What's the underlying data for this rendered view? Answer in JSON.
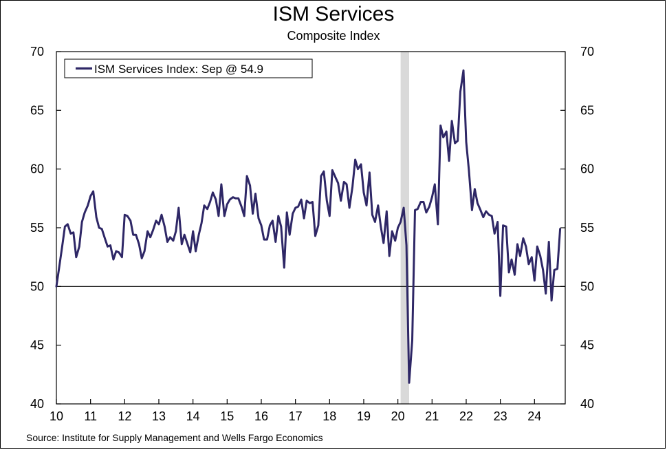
{
  "chart_data": {
    "type": "line",
    "title": "ISM Services",
    "subtitle": "Composite Index",
    "source": "Source: Institute for Supply Management and Wells Fargo Economics",
    "xlabel": "",
    "ylabel": "",
    "x_tick_labels": [
      "10",
      "11",
      "12",
      "13",
      "14",
      "15",
      "16",
      "17",
      "18",
      "19",
      "20",
      "21",
      "22",
      "23",
      "24"
    ],
    "y_tick_labels": [
      "40",
      "45",
      "50",
      "55",
      "60",
      "65",
      "70"
    ],
    "ylim": [
      40,
      70
    ],
    "xlim": [
      2010.0,
      2024.9
    ],
    "reference_line": 50,
    "grid": false,
    "legend_position": "top-left",
    "series_color": "#2e2766",
    "recession_color": "#d9d9d9",
    "recession": {
      "start": 2020.08,
      "end": 2020.33
    },
    "series": [
      {
        "name": "ISM Services Index: Sep @ 54.9",
        "points": [
          [
            2010.0,
            50.0
          ],
          [
            2010.08,
            51.6
          ],
          [
            2010.17,
            53.4
          ],
          [
            2010.25,
            55.1
          ],
          [
            2010.33,
            55.3
          ],
          [
            2010.42,
            54.5
          ],
          [
            2010.5,
            54.6
          ],
          [
            2010.58,
            52.5
          ],
          [
            2010.67,
            53.4
          ],
          [
            2010.75,
            55.5
          ],
          [
            2010.83,
            56.3
          ],
          [
            2010.92,
            56.9
          ],
          [
            2011.0,
            57.7
          ],
          [
            2011.08,
            58.1
          ],
          [
            2011.17,
            55.9
          ],
          [
            2011.25,
            55.0
          ],
          [
            2011.33,
            54.9
          ],
          [
            2011.42,
            54.1
          ],
          [
            2011.5,
            53.4
          ],
          [
            2011.58,
            53.5
          ],
          [
            2011.67,
            52.3
          ],
          [
            2011.75,
            53.0
          ],
          [
            2011.83,
            52.9
          ],
          [
            2011.92,
            52.5
          ],
          [
            2012.0,
            56.1
          ],
          [
            2012.08,
            56.0
          ],
          [
            2012.17,
            55.6
          ],
          [
            2012.25,
            54.4
          ],
          [
            2012.33,
            54.4
          ],
          [
            2012.42,
            53.6
          ],
          [
            2012.5,
            52.4
          ],
          [
            2012.58,
            53.0
          ],
          [
            2012.67,
            54.7
          ],
          [
            2012.75,
            54.2
          ],
          [
            2012.83,
            54.8
          ],
          [
            2012.92,
            55.6
          ],
          [
            2013.0,
            55.3
          ],
          [
            2013.08,
            56.1
          ],
          [
            2013.17,
            55.1
          ],
          [
            2013.25,
            53.8
          ],
          [
            2013.33,
            54.2
          ],
          [
            2013.42,
            53.9
          ],
          [
            2013.5,
            54.7
          ],
          [
            2013.58,
            56.7
          ],
          [
            2013.67,
            53.6
          ],
          [
            2013.75,
            54.4
          ],
          [
            2013.83,
            53.7
          ],
          [
            2013.92,
            52.9
          ],
          [
            2014.0,
            54.7
          ],
          [
            2014.08,
            53.0
          ],
          [
            2014.17,
            54.4
          ],
          [
            2014.25,
            55.4
          ],
          [
            2014.33,
            56.9
          ],
          [
            2014.42,
            56.6
          ],
          [
            2014.5,
            57.2
          ],
          [
            2014.58,
            58.0
          ],
          [
            2014.67,
            57.4
          ],
          [
            2014.75,
            56.0
          ],
          [
            2014.83,
            58.7
          ],
          [
            2014.92,
            56.0
          ],
          [
            2015.0,
            57.0
          ],
          [
            2015.08,
            57.4
          ],
          [
            2015.17,
            57.6
          ],
          [
            2015.25,
            57.5
          ],
          [
            2015.33,
            57.5
          ],
          [
            2015.42,
            56.8
          ],
          [
            2015.5,
            56.0
          ],
          [
            2015.58,
            59.4
          ],
          [
            2015.67,
            58.6
          ],
          [
            2015.75,
            56.2
          ],
          [
            2015.83,
            57.9
          ],
          [
            2015.92,
            55.8
          ],
          [
            2016.0,
            55.2
          ],
          [
            2016.08,
            54.0
          ],
          [
            2016.17,
            54.0
          ],
          [
            2016.25,
            55.2
          ],
          [
            2016.33,
            55.6
          ],
          [
            2016.42,
            53.8
          ],
          [
            2016.5,
            56.0
          ],
          [
            2016.58,
            55.1
          ],
          [
            2016.67,
            51.6
          ],
          [
            2016.75,
            56.3
          ],
          [
            2016.83,
            54.4
          ],
          [
            2016.92,
            56.2
          ],
          [
            2017.0,
            56.7
          ],
          [
            2017.08,
            56.8
          ],
          [
            2017.17,
            57.4
          ],
          [
            2017.25,
            55.8
          ],
          [
            2017.33,
            57.3
          ],
          [
            2017.42,
            57.1
          ],
          [
            2017.5,
            57.2
          ],
          [
            2017.58,
            54.3
          ],
          [
            2017.67,
            55.2
          ],
          [
            2017.75,
            59.4
          ],
          [
            2017.83,
            59.8
          ],
          [
            2017.92,
            57.3
          ],
          [
            2018.0,
            56.0
          ],
          [
            2018.08,
            59.9
          ],
          [
            2018.17,
            59.3
          ],
          [
            2018.25,
            58.8
          ],
          [
            2018.33,
            57.3
          ],
          [
            2018.42,
            58.9
          ],
          [
            2018.5,
            58.7
          ],
          [
            2018.58,
            56.7
          ],
          [
            2018.67,
            58.5
          ],
          [
            2018.75,
            60.8
          ],
          [
            2018.83,
            60.0
          ],
          [
            2018.92,
            60.4
          ],
          [
            2019.0,
            58.0
          ],
          [
            2019.08,
            56.9
          ],
          [
            2019.17,
            59.7
          ],
          [
            2019.25,
            56.1
          ],
          [
            2019.33,
            55.5
          ],
          [
            2019.42,
            56.9
          ],
          [
            2019.5,
            55.1
          ],
          [
            2019.58,
            53.7
          ],
          [
            2019.67,
            56.4
          ],
          [
            2019.75,
            52.6
          ],
          [
            2019.83,
            54.7
          ],
          [
            2019.92,
            53.9
          ],
          [
            2020.0,
            55.0
          ],
          [
            2020.08,
            55.5
          ],
          [
            2020.17,
            56.7
          ],
          [
            2020.25,
            53.5
          ],
          [
            2020.33,
            41.8
          ],
          [
            2020.42,
            45.4
          ],
          [
            2020.5,
            56.5
          ],
          [
            2020.58,
            56.6
          ],
          [
            2020.67,
            57.2
          ],
          [
            2020.75,
            57.2
          ],
          [
            2020.83,
            56.3
          ],
          [
            2020.92,
            56.8
          ],
          [
            2021.0,
            57.6
          ],
          [
            2021.08,
            58.7
          ],
          [
            2021.17,
            55.3
          ],
          [
            2021.25,
            63.7
          ],
          [
            2021.33,
            62.7
          ],
          [
            2021.42,
            63.2
          ],
          [
            2021.5,
            60.7
          ],
          [
            2021.58,
            64.1
          ],
          [
            2021.67,
            62.2
          ],
          [
            2021.75,
            62.4
          ],
          [
            2021.83,
            66.6
          ],
          [
            2021.92,
            68.4
          ],
          [
            2022.0,
            62.3
          ],
          [
            2022.08,
            59.9
          ],
          [
            2022.17,
            56.5
          ],
          [
            2022.25,
            58.3
          ],
          [
            2022.33,
            57.1
          ],
          [
            2022.42,
            56.5
          ],
          [
            2022.5,
            55.9
          ],
          [
            2022.58,
            56.4
          ],
          [
            2022.67,
            56.1
          ],
          [
            2022.75,
            56.0
          ],
          [
            2022.83,
            54.5
          ],
          [
            2022.92,
            55.5
          ],
          [
            2023.0,
            49.2
          ],
          [
            2023.08,
            55.2
          ],
          [
            2023.17,
            55.1
          ],
          [
            2023.25,
            51.2
          ],
          [
            2023.33,
            52.3
          ],
          [
            2023.42,
            51.0
          ],
          [
            2023.5,
            53.6
          ],
          [
            2023.58,
            52.6
          ],
          [
            2023.67,
            54.1
          ],
          [
            2023.75,
            53.4
          ],
          [
            2023.83,
            51.9
          ],
          [
            2023.92,
            52.5
          ],
          [
            2024.0,
            50.5
          ],
          [
            2024.08,
            53.4
          ],
          [
            2024.17,
            52.6
          ],
          [
            2024.25,
            51.4
          ],
          [
            2024.33,
            49.4
          ],
          [
            2024.42,
            53.8
          ],
          [
            2024.5,
            48.8
          ],
          [
            2024.58,
            51.4
          ],
          [
            2024.67,
            51.5
          ],
          [
            2024.75,
            54.9
          ]
        ]
      }
    ]
  }
}
